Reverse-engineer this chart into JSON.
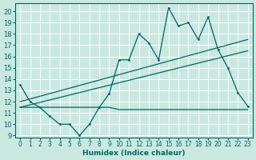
{
  "bg_color": "#c8e8e0",
  "line_color": "#006666",
  "xlabel": "Humidex (Indice chaleur)",
  "xlim": [
    -0.5,
    23.5
  ],
  "ylim": [
    8.8,
    20.7
  ],
  "xticks": [
    0,
    1,
    2,
    3,
    4,
    5,
    6,
    7,
    8,
    9,
    10,
    11,
    12,
    13,
    14,
    15,
    16,
    17,
    18,
    19,
    20,
    21,
    22,
    23
  ],
  "yticks": [
    9,
    10,
    11,
    12,
    13,
    14,
    15,
    16,
    17,
    18,
    19,
    20
  ],
  "main_x": [
    0,
    1,
    2,
    3,
    4,
    5,
    6,
    7,
    8,
    9,
    10,
    11,
    12,
    13,
    14,
    15,
    16,
    17,
    18,
    19,
    20,
    21,
    22,
    23
  ],
  "main_y": [
    13.5,
    12.0,
    11.5,
    10.7,
    10.0,
    10.0,
    9.0,
    10.0,
    11.5,
    12.7,
    15.7,
    15.7,
    18.0,
    17.2,
    15.7,
    20.3,
    18.7,
    19.0,
    17.5,
    19.5,
    16.6,
    15.0,
    12.8,
    11.6
  ],
  "upper_trend_x": [
    0,
    23
  ],
  "upper_trend_y": [
    12.0,
    17.5
  ],
  "lower_trend_x": [
    0,
    23
  ],
  "lower_trend_y": [
    11.5,
    16.5
  ],
  "flat_line_x": [
    0,
    9,
    10,
    15,
    16,
    17,
    18,
    19,
    20,
    21,
    22,
    23
  ],
  "flat_line_y": [
    11.5,
    11.5,
    11.3,
    11.3,
    11.3,
    11.3,
    11.3,
    11.3,
    11.3,
    11.3,
    11.3,
    11.3
  ],
  "figsize": [
    3.2,
    2.0
  ],
  "dpi": 100
}
